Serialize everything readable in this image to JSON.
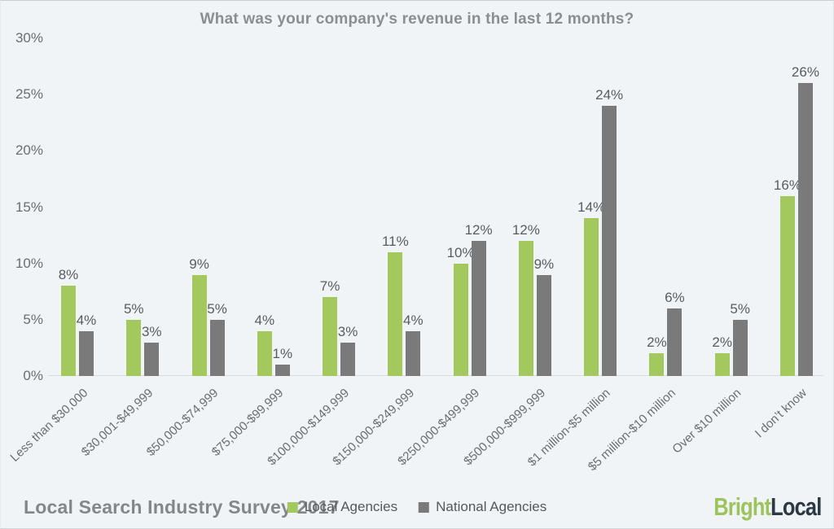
{
  "chart_data": {
    "type": "bar",
    "title": "What was your company's revenue in the last 12 months?",
    "categories": [
      "Less than $30,000",
      "$30,001-$49,999",
      "$50,000-$74,999",
      "$75,000-$99,999",
      "$100,000-$149,999",
      "$150,000-$249,999",
      "$250,000-$499,999",
      "$500,000-$999,999",
      "$1 million-$5 million",
      "$5 million-$10 million",
      "Over $10 million",
      "I don’t know"
    ],
    "series": [
      {
        "name": "Local Agencies",
        "color": "#a3c85e",
        "values": [
          8,
          5,
          9,
          4,
          7,
          11,
          10,
          12,
          14,
          2,
          2,
          16
        ]
      },
      {
        "name": "National Agencies",
        "color": "#7a7a7a",
        "values": [
          4,
          3,
          5,
          1,
          3,
          4,
          12,
          9,
          24,
          6,
          5,
          26
        ]
      }
    ],
    "value_suffix": "%",
    "ylim": [
      0,
      30
    ],
    "yticks": [
      0,
      5,
      10,
      15,
      20,
      25,
      30
    ],
    "ytick_suffix": "%",
    "grid": false,
    "legend_position": "bottom-center",
    "xlabel_rotation_deg": -43
  },
  "footer": {
    "source": "Local Search Industry Survey 2017",
    "logo": {
      "part1": "Bright",
      "part2": "Local"
    }
  },
  "theme": {
    "background": "#f0f4f7",
    "axis_line": "#d8dce0",
    "title_color": "#8b8e91",
    "tick_label_color": "#6b6e71",
    "value_label_color": "#595c5e",
    "source_color": "#83878b",
    "logo_part1_color": "#9dc35c",
    "logo_part2_color": "#2c3943"
  }
}
